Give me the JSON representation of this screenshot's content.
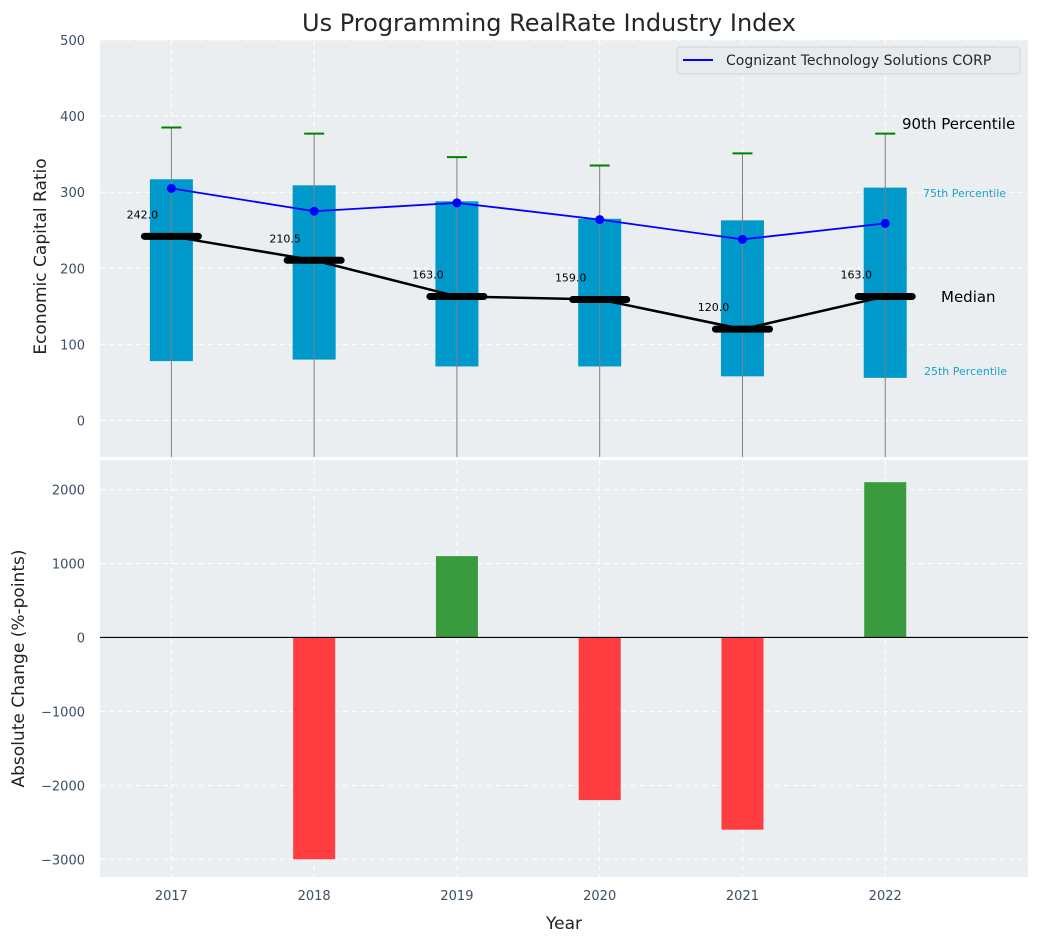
{
  "chart_data": [
    {
      "type": "bar",
      "subtype": "percentile-box",
      "title": "Us Programming RealRate Industry Index",
      "xlabel": "",
      "ylabel": "Economic Capital Ratio",
      "x": [
        2017,
        2018,
        2019,
        2020,
        2021,
        2022
      ],
      "xlim": [
        2016.5,
        2023.0
      ],
      "ylim": [
        -48,
        500
      ],
      "yticks": [
        0,
        100,
        200,
        300,
        400,
        500
      ],
      "grid": true,
      "percentile_25": [
        78,
        80,
        71,
        71,
        58,
        56
      ],
      "percentile_75": [
        317,
        309,
        288,
        265,
        263,
        306
      ],
      "percentile_90": [
        385,
        377,
        346,
        335,
        351,
        377
      ],
      "median": [
        242.0,
        210.5,
        163.0,
        159.0,
        120.0,
        163.0
      ],
      "median_labels": [
        "242.0",
        "210.5",
        "163.0",
        "159.0",
        "120.0",
        "163.0"
      ],
      "series": [
        {
          "name": "Cognizant Technology Solutions CORP",
          "values": [
            305,
            275,
            286,
            264,
            238,
            259
          ],
          "color": "#0000ff"
        }
      ],
      "legend": {
        "position": "top-right",
        "entries": [
          "Cognizant Technology Solutions CORP"
        ]
      },
      "annotations": {
        "p90": "90th Percentile",
        "p75": "75th Percentile",
        "median": "Median",
        "p25": "25th Percentile"
      },
      "colors": {
        "box": "#0099cc",
        "cap": "#008000",
        "whisker": "#808080",
        "median": "#000000",
        "line": "#0000ff",
        "pct_label": "#1ba3c9",
        "background": "#eaeef0"
      }
    },
    {
      "type": "bar",
      "title": "",
      "xlabel": "Year",
      "ylabel": "Absolute Change (%-points)",
      "categories": [
        "2017",
        "2018",
        "2019",
        "2020",
        "2021",
        "2022"
      ],
      "x": [
        2017,
        2018,
        2019,
        2020,
        2021,
        2022
      ],
      "values": [
        0,
        -3000,
        1100,
        -2200,
        -2600,
        2100
      ],
      "xlim": [
        2016.5,
        2023.0
      ],
      "ylim": [
        -3240,
        2400
      ],
      "yticks": [
        -3000,
        -2000,
        -1000,
        0,
        1000,
        2000
      ],
      "ytick_labels": [
        "−3000",
        "−2000",
        "−1000",
        "0",
        "1000",
        "2000"
      ],
      "grid": true,
      "colors": {
        "positive": "#3a9a3e",
        "negative": "#ff3c3f",
        "zero_line": "#000000",
        "background": "#eaeef0"
      }
    }
  ]
}
